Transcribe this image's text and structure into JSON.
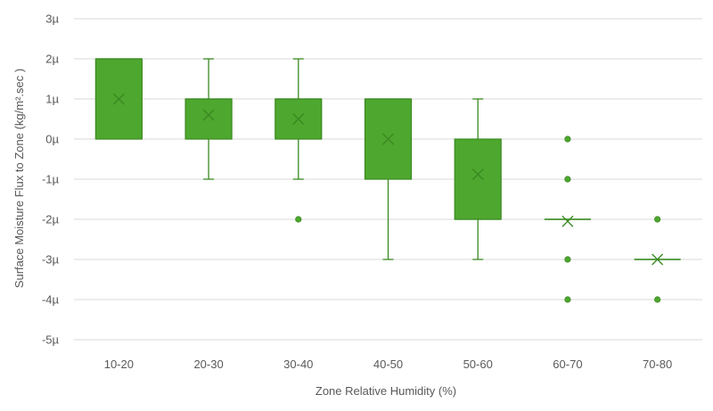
{
  "chart_data": {
    "type": "box",
    "xlabel": "Zone Relative Humidity (%)",
    "ylabel": "Surface Moisture Flux to Zone (kg/m².sec )",
    "ylim": [
      -5,
      3
    ],
    "y_unit": "µ",
    "y_ticks": [
      "3µ",
      "2µ",
      "1µ",
      "0µ",
      "-1µ",
      "-2µ",
      "-3µ",
      "-4µ",
      "-5µ"
    ],
    "y_tick_values": [
      3,
      2,
      1,
      0,
      -1,
      -2,
      -3,
      -4,
      -5
    ],
    "grid": true,
    "legend": "none",
    "color": "#4ea72e",
    "stroke_color": "#3a8a22",
    "categories": [
      "10-20",
      "20-30",
      "30-40",
      "40-50",
      "50-60",
      "60-70",
      "70-80"
    ],
    "boxes": [
      {
        "category": "10-20",
        "min": 0,
        "q1": 0,
        "median": 2,
        "q3": 2,
        "max": 2,
        "mean": 1,
        "outliers": []
      },
      {
        "category": "20-30",
        "min": -1,
        "q1": 0,
        "median": 1,
        "q3": 1,
        "max": 2,
        "mean": 0.6,
        "outliers": []
      },
      {
        "category": "30-40",
        "min": -1,
        "q1": 0,
        "median": 1,
        "q3": 1,
        "max": 2,
        "mean": 0.5,
        "outliers": [
          -2
        ]
      },
      {
        "category": "40-50",
        "min": -3,
        "q1": -1,
        "median": 1,
        "q3": 1,
        "max": 1,
        "mean": 0,
        "outliers": []
      },
      {
        "category": "50-60",
        "min": -3,
        "q1": -2,
        "median": -2,
        "q3": 0,
        "max": 1,
        "mean": -0.88,
        "outliers": []
      },
      {
        "category": "60-70",
        "min": -2,
        "q1": -2,
        "median": -2,
        "q3": -2,
        "max": -2,
        "mean": -2.05,
        "outliers": [
          0,
          -1,
          -3,
          -4
        ]
      },
      {
        "category": "70-80",
        "min": -3,
        "q1": -3,
        "median": -3,
        "q3": -3,
        "max": -3,
        "mean": -3,
        "outliers": [
          -2,
          -4
        ]
      }
    ]
  }
}
